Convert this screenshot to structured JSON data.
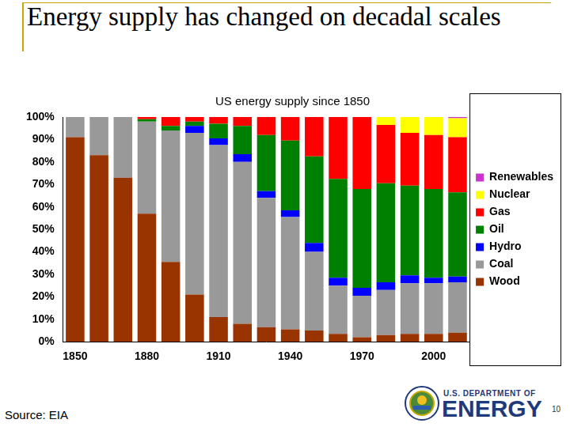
{
  "chart_data": {
    "type": "bar",
    "title": "Energy supply has changed on decadal scales",
    "subtitle": "US energy supply since 1850",
    "categories": [
      "1850",
      null,
      null,
      "1880",
      null,
      null,
      "1910",
      null,
      null,
      "1940",
      null,
      null,
      "1970",
      null,
      null,
      "2000",
      null
    ],
    "series": [
      {
        "name": "Wood",
        "color": "#993300",
        "values": [
          91,
          83,
          73,
          57,
          35.5,
          21,
          11,
          8,
          6.5,
          5.5,
          5,
          3.5,
          2,
          3,
          3.5,
          3.5,
          4
        ]
      },
      {
        "name": "Coal",
        "color": "#999999",
        "values": [
          9,
          17,
          27,
          41,
          58.5,
          72,
          76.5,
          72,
          57.5,
          50,
          35,
          21.5,
          18.5,
          20,
          22.5,
          22.5,
          22.5
        ]
      },
      {
        "name": "Hydro",
        "color": "#0000ff",
        "values": [
          0,
          0,
          0,
          0,
          0,
          3,
          3,
          3.5,
          3,
          3,
          4,
          3.5,
          3.5,
          3.5,
          3.5,
          2.5,
          2.5
        ]
      },
      {
        "name": "Oil",
        "color": "#008000",
        "values": [
          0,
          0,
          0,
          1,
          2,
          2,
          6.5,
          12.5,
          25,
          31,
          38.5,
          44,
          44,
          44,
          40,
          39.5,
          37.5
        ]
      },
      {
        "name": "Gas",
        "color": "#ff0000",
        "values": [
          0,
          0,
          0,
          1,
          4,
          2,
          3,
          4,
          8,
          10.5,
          17.5,
          27.5,
          32,
          26,
          23.5,
          24,
          24.5
        ]
      },
      {
        "name": "Nuclear",
        "color": "#ffff00",
        "values": [
          0,
          0,
          0,
          0,
          0,
          0,
          0,
          0,
          0,
          0,
          0,
          0,
          0,
          3.5,
          7,
          8,
          8.5
        ]
      },
      {
        "name": "Renewables",
        "color": "#cc33cc",
        "values": [
          0,
          0,
          0,
          0,
          0,
          0,
          0,
          0,
          0,
          0,
          0,
          0,
          0,
          0,
          0,
          0,
          0.5
        ]
      }
    ],
    "stacked": true,
    "ylim": [
      0,
      100
    ],
    "yticks": [
      {
        "value": 0,
        "label": "0%"
      },
      {
        "value": 10,
        "label": "10%"
      },
      {
        "value": 20,
        "label": "20%"
      },
      {
        "value": 30,
        "label": "30%"
      },
      {
        "value": 40,
        "label": "40%"
      },
      {
        "value": 50,
        "label": "50%"
      },
      {
        "value": 60,
        "label": "60%"
      },
      {
        "value": 70,
        "label": "70%"
      },
      {
        "value": 80,
        "label": "80%"
      },
      {
        "value": 90,
        "label": "90%"
      },
      {
        "value": 100,
        "label": "100%"
      }
    ],
    "grid": false,
    "legend": "right"
  },
  "slide": {
    "source": "Source: EIA",
    "logo": [
      "U.S. DEPARTMENT OF",
      "ENERGY"
    ],
    "page": 10
  }
}
